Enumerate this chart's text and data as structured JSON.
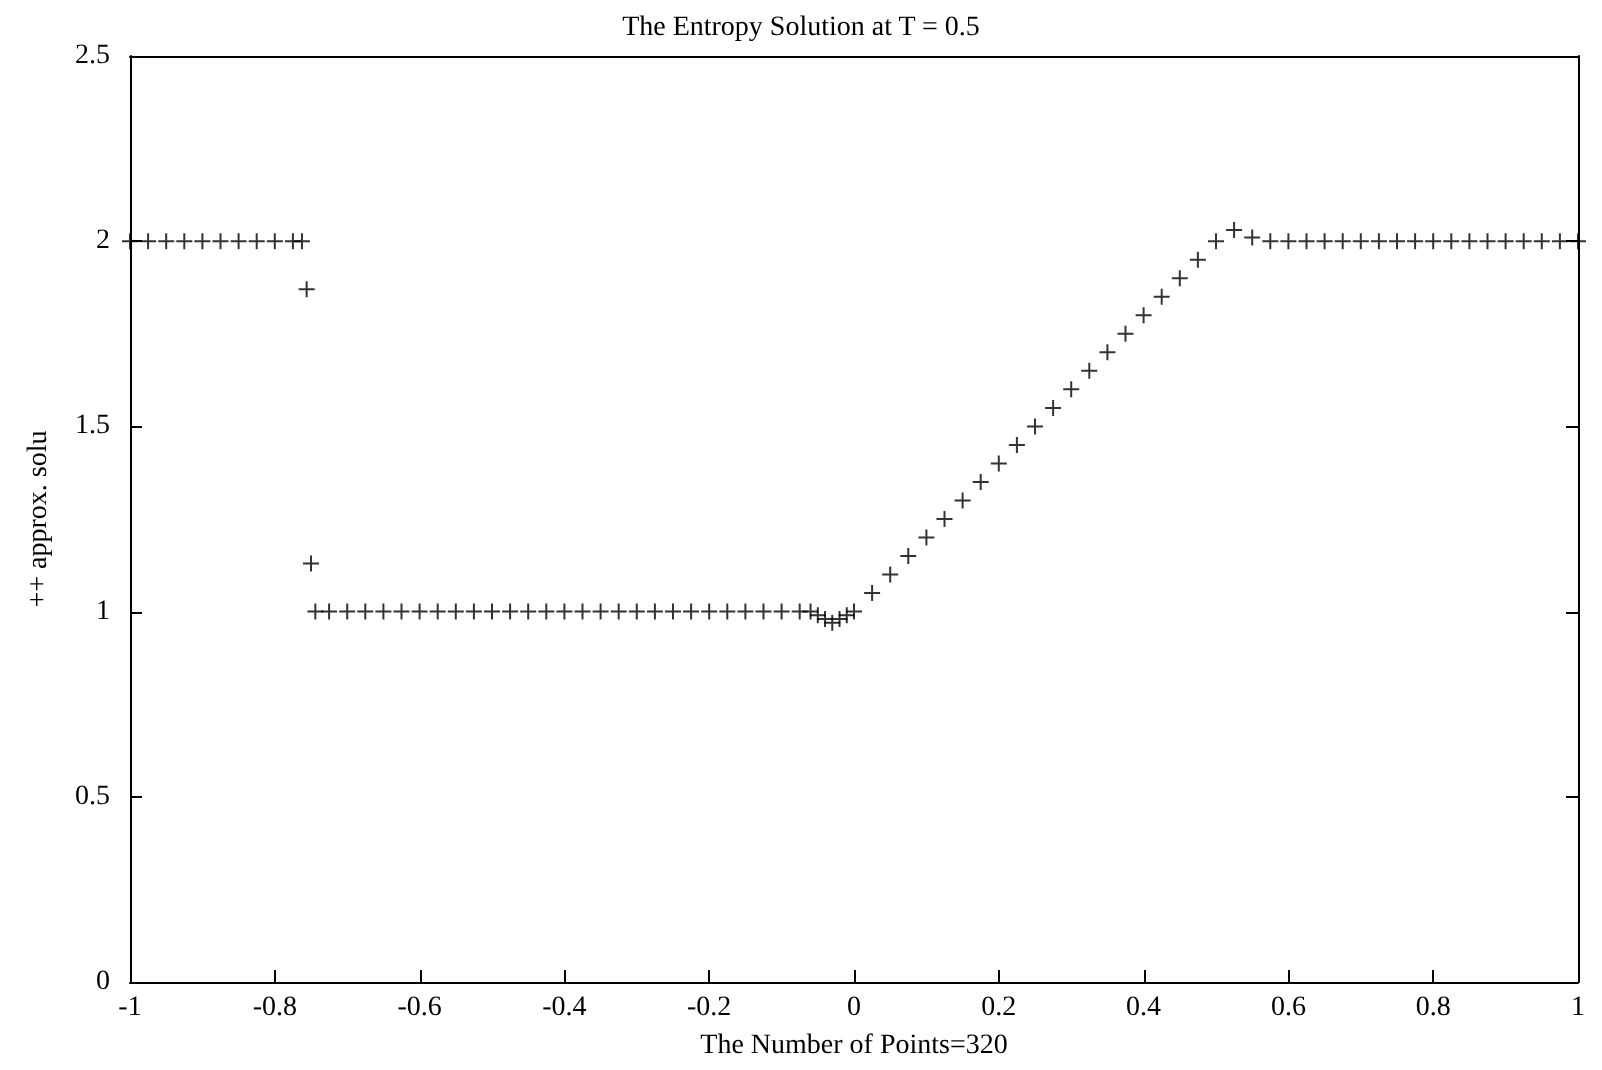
{
  "chart_data": {
    "type": "scatter",
    "title": "The Entropy Solution at T = 0.5",
    "xlabel": "The Number of Points=320",
    "ylabel": "++ approx. solu",
    "xlim": [
      -1,
      1
    ],
    "xticks": [
      -1,
      -0.8,
      -0.6,
      -0.4,
      -0.2,
      0,
      0.2,
      0.4,
      0.6,
      0.8,
      1
    ],
    "ylim": [
      0,
      2.5
    ],
    "yticks": [
      0,
      0.5,
      1,
      1.5,
      2,
      2.5
    ],
    "grid": false,
    "marker": "cross",
    "series": [
      {
        "color": "#000000",
        "x": [
          -1,
          -0.975,
          -0.95,
          -0.925,
          -0.9,
          -0.875,
          -0.85,
          -0.825,
          -0.8,
          -0.775,
          -0.7625,
          -0.756,
          -0.75,
          -0.744,
          -0.725,
          -0.7,
          -0.675,
          -0.65,
          -0.625,
          -0.6,
          -0.575,
          -0.55,
          -0.525,
          -0.5,
          -0.475,
          -0.45,
          -0.425,
          -0.4,
          -0.375,
          -0.35,
          -0.325,
          -0.3,
          -0.275,
          -0.25,
          -0.225,
          -0.2,
          -0.175,
          -0.15,
          -0.125,
          -0.1,
          -0.075,
          -0.06,
          -0.05,
          -0.04,
          -0.03,
          -0.02,
          -0.01,
          0,
          0.025,
          0.05,
          0.075,
          0.1,
          0.125,
          0.15,
          0.175,
          0.2,
          0.225,
          0.25,
          0.275,
          0.3,
          0.325,
          0.35,
          0.375,
          0.4,
          0.425,
          0.45,
          0.475,
          0.5,
          0.525,
          0.55,
          0.575,
          0.6,
          0.625,
          0.65,
          0.675,
          0.7,
          0.725,
          0.75,
          0.775,
          0.8,
          0.825,
          0.85,
          0.875,
          0.9,
          0.925,
          0.95,
          0.975,
          1
        ],
        "values": [
          2,
          2,
          2,
          2,
          2,
          2,
          2,
          2,
          2,
          2,
          2,
          1.87,
          1.13,
          1,
          1,
          1,
          1,
          1,
          1,
          1,
          1,
          1,
          1,
          1,
          1,
          1,
          1,
          1,
          1,
          1,
          1,
          1,
          1,
          1,
          1,
          1,
          1,
          1,
          1,
          1,
          1,
          1,
          0.99,
          0.98,
          0.97,
          0.98,
          0.99,
          1,
          1.05,
          1.1,
          1.15,
          1.2,
          1.25,
          1.3,
          1.35,
          1.4,
          1.45,
          1.5,
          1.55,
          1.6,
          1.65,
          1.7,
          1.75,
          1.8,
          1.85,
          1.9,
          1.95,
          2,
          2.03,
          2.01,
          2,
          2,
          2,
          2,
          2,
          2,
          2,
          2,
          2,
          2,
          2,
          2,
          2,
          2,
          2,
          2,
          2,
          2
        ]
      }
    ]
  }
}
